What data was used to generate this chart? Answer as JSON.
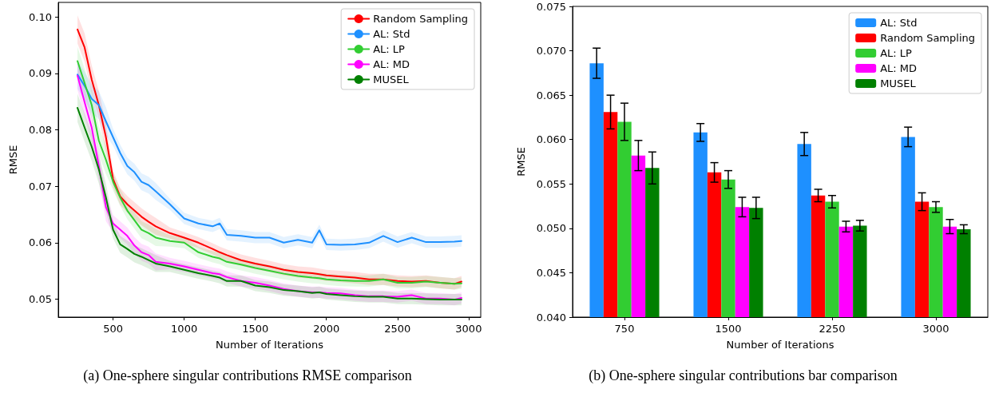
{
  "chart_data": [
    {
      "type": "line",
      "xlabel": "Number of Iterations",
      "ylabel": "RMSE",
      "legend": "top right",
      "marker": "none",
      "grid": false,
      "annotations": [
        "(a) One-sphere singular contributions RMSE comparison"
      ],
      "xlim": [
        115,
        3085
      ],
      "xticks": [
        500,
        1000,
        1500,
        2000,
        2500,
        3000
      ],
      "ylim": [
        0.0468,
        0.1026
      ],
      "yticks": [
        0.05,
        0.06,
        0.07,
        0.08,
        0.09,
        {
          "value": 0.1,
          "label": "0.10"
        }
      ],
      "x": [
        250,
        300,
        350,
        400,
        450,
        500,
        550,
        600,
        650,
        700,
        750,
        800,
        900,
        1000,
        1100,
        1200,
        1250,
        1300,
        1400,
        1500,
        1600,
        1700,
        1800,
        1900,
        1950,
        2000,
        2100,
        2200,
        2300,
        2400,
        2500,
        2600,
        2700,
        2800,
        2900,
        2950
      ],
      "series": [
        {
          "name": "Random Sampling",
          "color": "#ff0000",
          "values": [
            0.0978,
            0.0946,
            0.0889,
            0.0844,
            0.0787,
            0.0713,
            0.0682,
            0.0668,
            0.0657,
            0.0646,
            0.0637,
            0.0629,
            0.0617,
            0.0609,
            0.06,
            0.0589,
            0.0583,
            0.0578,
            0.0569,
            0.0563,
            0.0558,
            0.0552,
            0.0548,
            0.0546,
            0.0544,
            0.0542,
            0.054,
            0.0538,
            0.0535,
            0.0535,
            0.0532,
            0.0531,
            0.0532,
            0.0529,
            0.0527,
            0.0531
          ],
          "lower": [
            0.0953,
            0.0921,
            0.0864,
            0.0819,
            0.0762,
            0.0698,
            0.0667,
            0.0653,
            0.0642,
            0.0631,
            0.0622,
            0.0614,
            0.0607,
            0.0599,
            0.059,
            0.0579,
            0.0573,
            0.0568,
            0.0559,
            0.0553,
            0.0548,
            0.0542,
            0.0538,
            0.0536,
            0.0534,
            0.0532,
            0.053,
            0.0528,
            0.0525,
            0.0525,
            0.0522,
            0.0521,
            0.0522,
            0.0519,
            0.0517,
            0.0521
          ],
          "upper": [
            0.1003,
            0.0971,
            0.0914,
            0.0869,
            0.0812,
            0.0728,
            0.0697,
            0.0683,
            0.0672,
            0.0661,
            0.0652,
            0.0644,
            0.0627,
            0.0619,
            0.061,
            0.0599,
            0.0593,
            0.0588,
            0.0579,
            0.0573,
            0.0568,
            0.0562,
            0.0558,
            0.0556,
            0.0554,
            0.0552,
            0.055,
            0.0548,
            0.0545,
            0.0545,
            0.0542,
            0.0541,
            0.0542,
            0.0539,
            0.0537,
            0.0541
          ]
        },
        {
          "name": "AL: Std",
          "color": "#1e90ff",
          "values": [
            0.0898,
            0.0878,
            0.0855,
            0.0844,
            0.0815,
            0.0787,
            0.0759,
            0.0736,
            0.0725,
            0.0708,
            0.0702,
            0.0691,
            0.0668,
            0.0643,
            0.0634,
            0.0629,
            0.0634,
            0.0614,
            0.0612,
            0.0609,
            0.0609,
            0.06,
            0.0605,
            0.06,
            0.0622,
            0.0597,
            0.0596,
            0.0597,
            0.06,
            0.0612,
            0.0601,
            0.0609,
            0.0601,
            0.0601,
            0.0602,
            0.0603
          ],
          "lower": [
            0.0873,
            0.0853,
            0.083,
            0.0819,
            0.079,
            0.0772,
            0.0744,
            0.0721,
            0.071,
            0.0693,
            0.0687,
            0.0676,
            0.0658,
            0.0633,
            0.0624,
            0.0619,
            0.0624,
            0.0604,
            0.0602,
            0.0599,
            0.0599,
            0.059,
            0.0595,
            0.059,
            0.0612,
            0.0587,
            0.0586,
            0.0587,
            0.059,
            0.0602,
            0.0591,
            0.0599,
            0.0591,
            0.0591,
            0.0592,
            0.0593
          ],
          "upper": [
            0.0923,
            0.0903,
            0.088,
            0.0869,
            0.084,
            0.0802,
            0.0774,
            0.0751,
            0.074,
            0.0723,
            0.0717,
            0.0706,
            0.0678,
            0.0653,
            0.0644,
            0.0639,
            0.0644,
            0.0624,
            0.0622,
            0.0619,
            0.0619,
            0.061,
            0.0615,
            0.061,
            0.0632,
            0.0607,
            0.0606,
            0.0607,
            0.061,
            0.0622,
            0.0611,
            0.0619,
            0.0611,
            0.0611,
            0.0612,
            0.0613
          ]
        },
        {
          "name": "AL: LP",
          "color": "#32cd32",
          "values": [
            0.0922,
            0.0883,
            0.0844,
            0.0781,
            0.0747,
            0.0708,
            0.068,
            0.0657,
            0.064,
            0.0623,
            0.0617,
            0.0609,
            0.0603,
            0.06,
            0.0583,
            0.0575,
            0.0572,
            0.0566,
            0.0561,
            0.0555,
            0.055,
            0.0545,
            0.0541,
            0.0538,
            0.0537,
            0.0535,
            0.0533,
            0.0532,
            0.0532,
            0.0535,
            0.0529,
            0.0529,
            0.0531,
            0.0529,
            0.0527,
            0.0528
          ],
          "lower": [
            0.0897,
            0.0858,
            0.0819,
            0.0756,
            0.0722,
            0.0693,
            0.0665,
            0.0642,
            0.0625,
            0.0608,
            0.0602,
            0.0594,
            0.0593,
            0.059,
            0.0573,
            0.0565,
            0.0562,
            0.0556,
            0.0551,
            0.0545,
            0.054,
            0.0535,
            0.0531,
            0.0528,
            0.0527,
            0.0525,
            0.0523,
            0.0522,
            0.0522,
            0.0525,
            0.0519,
            0.0519,
            0.0521,
            0.0519,
            0.0517,
            0.0518
          ],
          "upper": [
            0.0947,
            0.0908,
            0.0869,
            0.0806,
            0.0772,
            0.0723,
            0.0695,
            0.0672,
            0.0655,
            0.0638,
            0.0632,
            0.0624,
            0.0613,
            0.061,
            0.0593,
            0.0585,
            0.0582,
            0.0576,
            0.0571,
            0.0565,
            0.056,
            0.0555,
            0.0551,
            0.0548,
            0.0547,
            0.0545,
            0.0543,
            0.0542,
            0.0542,
            0.0545,
            0.0539,
            0.0539,
            0.0541,
            0.0539,
            0.0537,
            0.0538
          ]
        },
        {
          "name": "AL: MD",
          "color": "#ff00ff",
          "values": [
            0.0896,
            0.0849,
            0.0804,
            0.0736,
            0.0663,
            0.0634,
            0.0623,
            0.0612,
            0.0595,
            0.0583,
            0.0578,
            0.0566,
            0.0563,
            0.0558,
            0.0552,
            0.0546,
            0.0544,
            0.0539,
            0.0532,
            0.0529,
            0.0524,
            0.0518,
            0.0514,
            0.0512,
            0.0512,
            0.0511,
            0.051,
            0.0507,
            0.0505,
            0.0505,
            0.0504,
            0.0507,
            0.0501,
            0.0501,
            0.0499,
            0.0502
          ],
          "lower": [
            0.0871,
            0.0824,
            0.0779,
            0.0711,
            0.0638,
            0.0619,
            0.0608,
            0.0597,
            0.058,
            0.0568,
            0.0563,
            0.0551,
            0.0553,
            0.0548,
            0.0542,
            0.0536,
            0.0534,
            0.0529,
            0.0522,
            0.0519,
            0.0514,
            0.0508,
            0.0504,
            0.0502,
            0.0502,
            0.0501,
            0.05,
            0.0497,
            0.0495,
            0.0495,
            0.0494,
            0.0497,
            0.0491,
            0.0491,
            0.0489,
            0.0492
          ],
          "upper": [
            0.0921,
            0.0874,
            0.0829,
            0.0761,
            0.0688,
            0.0649,
            0.0638,
            0.0627,
            0.061,
            0.0598,
            0.0593,
            0.0581,
            0.0573,
            0.0568,
            0.0562,
            0.0556,
            0.0554,
            0.0549,
            0.0542,
            0.0539,
            0.0534,
            0.0528,
            0.0524,
            0.0522,
            0.0522,
            0.0521,
            0.052,
            0.0517,
            0.0515,
            0.0515,
            0.0514,
            0.0517,
            0.0511,
            0.0511,
            0.0509,
            0.0512
          ]
        },
        {
          "name": "MUSEL",
          "color": "#008000",
          "values": [
            0.0839,
            0.0804,
            0.077,
            0.073,
            0.068,
            0.0623,
            0.0597,
            0.0589,
            0.058,
            0.0575,
            0.0569,
            0.0563,
            0.0558,
            0.0552,
            0.0546,
            0.0541,
            0.0538,
            0.0532,
            0.0532,
            0.0524,
            0.0521,
            0.0516,
            0.0514,
            0.0511,
            0.0512,
            0.0509,
            0.0507,
            0.0505,
            0.0504,
            0.0504,
            0.0501,
            0.0501,
            0.05,
            0.0499,
            0.0499,
            0.0499
          ],
          "lower": [
            0.0814,
            0.0779,
            0.0745,
            0.0705,
            0.0655,
            0.0608,
            0.0582,
            0.0574,
            0.0565,
            0.056,
            0.0554,
            0.0548,
            0.0548,
            0.0542,
            0.0536,
            0.0531,
            0.0528,
            0.0522,
            0.0522,
            0.0514,
            0.0511,
            0.0506,
            0.0504,
            0.0501,
            0.0502,
            0.0499,
            0.0497,
            0.0495,
            0.0494,
            0.0494,
            0.0491,
            0.0491,
            0.049,
            0.0489,
            0.0489,
            0.0489
          ],
          "upper": [
            0.0864,
            0.0829,
            0.0795,
            0.0755,
            0.0705,
            0.0638,
            0.0612,
            0.0604,
            0.0595,
            0.059,
            0.0584,
            0.0578,
            0.0568,
            0.0562,
            0.0556,
            0.0551,
            0.0548,
            0.0542,
            0.0542,
            0.0534,
            0.0531,
            0.0526,
            0.0524,
            0.0521,
            0.0522,
            0.0519,
            0.0517,
            0.0515,
            0.0514,
            0.0514,
            0.0511,
            0.0511,
            0.051,
            0.0509,
            0.0509,
            0.0509
          ]
        }
      ]
    },
    {
      "type": "bar",
      "xlabel": "Number of Iterations",
      "ylabel": "RMSE",
      "legend": "top right",
      "grid": false,
      "annotations": [
        "(b) One-sphere singular contributions bar comparison"
      ],
      "categories": [
        "750",
        "1500",
        "2250",
        "3000"
      ],
      "ylim": [
        0.04,
        0.075
      ],
      "yticks": [
        {
          "value": 0.04,
          "label": "0.040"
        },
        {
          "value": 0.045,
          "label": "0.045"
        },
        {
          "value": 0.05,
          "label": "0.050"
        },
        {
          "value": 0.055,
          "label": "0.055"
        },
        {
          "value": 0.06,
          "label": "0.060"
        },
        {
          "value": 0.065,
          "label": "0.065"
        },
        {
          "value": 0.07,
          "label": "0.070"
        },
        {
          "value": 0.075,
          "label": "0.075"
        }
      ],
      "series": [
        {
          "name": "AL: Std",
          "color": "#1e90ff",
          "values": [
            0.0686,
            0.0608,
            0.0595,
            0.0603
          ],
          "errors": [
            0.0017,
            0.001,
            0.0013,
            0.0011
          ]
        },
        {
          "name": "Random Sampling",
          "color": "#ff0000",
          "values": [
            0.0631,
            0.0563,
            0.0537,
            0.053
          ],
          "errors": [
            0.0019,
            0.0011,
            0.0007,
            0.001
          ]
        },
        {
          "name": "AL: LP",
          "color": "#32cd32",
          "values": [
            0.062,
            0.0555,
            0.053,
            0.0524
          ],
          "errors": [
            0.0021,
            0.001,
            0.0007,
            0.0006
          ]
        },
        {
          "name": "AL: MD",
          "color": "#ff00ff",
          "values": [
            0.0582,
            0.0524,
            0.0502,
            0.0502
          ],
          "errors": [
            0.0017,
            0.0011,
            0.0006,
            0.0008
          ]
        },
        {
          "name": "MUSEL",
          "color": "#008000",
          "values": [
            0.0568,
            0.0523,
            0.0503,
            0.0499
          ],
          "errors": [
            0.0018,
            0.0012,
            0.0006,
            0.0005
          ]
        }
      ]
    }
  ]
}
